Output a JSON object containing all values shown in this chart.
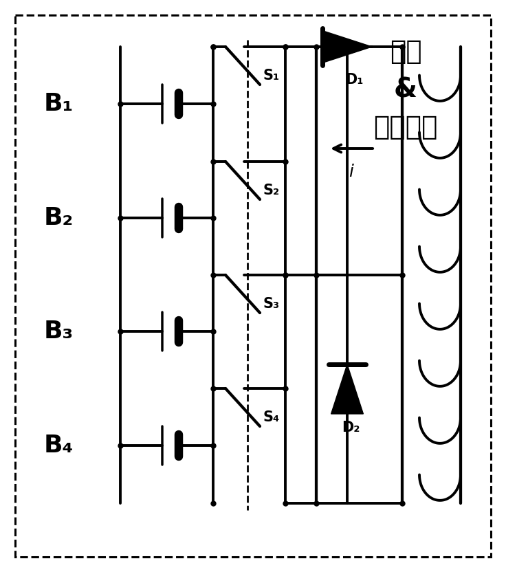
{
  "bg_color": "#ffffff",
  "line_color": "#000000",
  "line_width": 2.5,
  "fig_width": 7.36,
  "fig_height": 8.32,
  "title_line1": "整流",
  "title_line2": "&",
  "title_line3": "电池选择",
  "battery_labels": [
    "B₁",
    "B₂",
    "B₃",
    "B₄"
  ],
  "switch_labels": [
    "S₁",
    "S₂",
    "S₃",
    "S₄"
  ],
  "d1_label": "D₁",
  "d2_label": "D₂",
  "current_label": "i"
}
